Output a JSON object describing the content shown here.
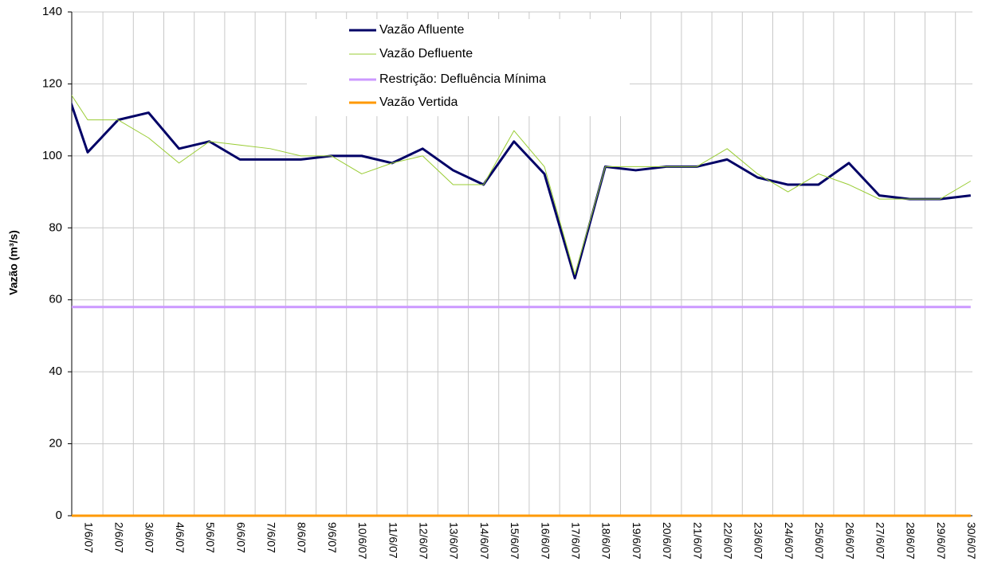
{
  "chart_data": {
    "type": "line",
    "y_label": "Vazão (m³/s)",
    "categories": [
      null,
      "1/6/07",
      "2/6/07",
      "3/6/07",
      "4/6/07",
      "5/6/07",
      "6/6/07",
      "7/6/07",
      "8/6/07",
      "9/6/07",
      "10/6/07",
      "11/6/07",
      "12/6/07",
      "13/6/07",
      "14/6/07",
      "15/6/07",
      "16/6/07",
      "17/6/07",
      "18/6/07",
      "19/6/07",
      "20/6/07",
      "21/6/07",
      "22/6/07",
      "23/6/07",
      "24/6/07",
      "25/6/07",
      "26/6/07",
      "27/6/07",
      "28/6/07",
      "29/6/07",
      "30/6/07"
    ],
    "series": [
      {
        "name": "Vazão Afluente",
        "color": "#000066",
        "width": 3,
        "values": [
          126,
          101,
          110,
          112,
          102,
          104,
          99,
          99,
          99,
          100,
          100,
          98,
          102,
          96,
          92,
          104,
          95,
          66,
          97,
          96,
          97,
          97,
          99,
          94,
          92,
          92,
          98,
          89,
          88,
          88,
          89
        ]
      },
      {
        "name": "Vazão Defluente",
        "color": "#99cc33",
        "width": 1,
        "values": [
          123,
          110,
          110,
          105,
          98,
          104,
          103,
          102,
          100,
          100,
          95,
          98,
          100,
          92,
          92,
          107,
          97,
          67,
          97,
          97,
          97,
          97,
          102,
          95,
          90,
          95,
          92,
          88,
          88,
          88,
          93
        ]
      },
      {
        "name": "Restrição: Defluência Mínima",
        "color": "#cc99ff",
        "width": 3,
        "values": [
          58,
          58,
          58,
          58,
          58,
          58,
          58,
          58,
          58,
          58,
          58,
          58,
          58,
          58,
          58,
          58,
          58,
          58,
          58,
          58,
          58,
          58,
          58,
          58,
          58,
          58,
          58,
          58,
          58,
          58,
          58
        ]
      },
      {
        "name": "Vazão Vertida",
        "color": "#ff9900",
        "width": 3,
        "values": [
          0,
          0,
          0,
          0,
          0,
          0,
          0,
          0,
          0,
          0,
          0,
          0,
          0,
          0,
          0,
          0,
          0,
          0,
          0,
          0,
          0,
          0,
          0,
          0,
          0,
          0,
          0,
          0,
          0,
          0,
          0
        ]
      }
    ],
    "ylim": [
      0,
      140
    ],
    "yticks": [
      0,
      20,
      40,
      60,
      80,
      100,
      120,
      140
    ],
    "grid": true,
    "legend": "top"
  }
}
